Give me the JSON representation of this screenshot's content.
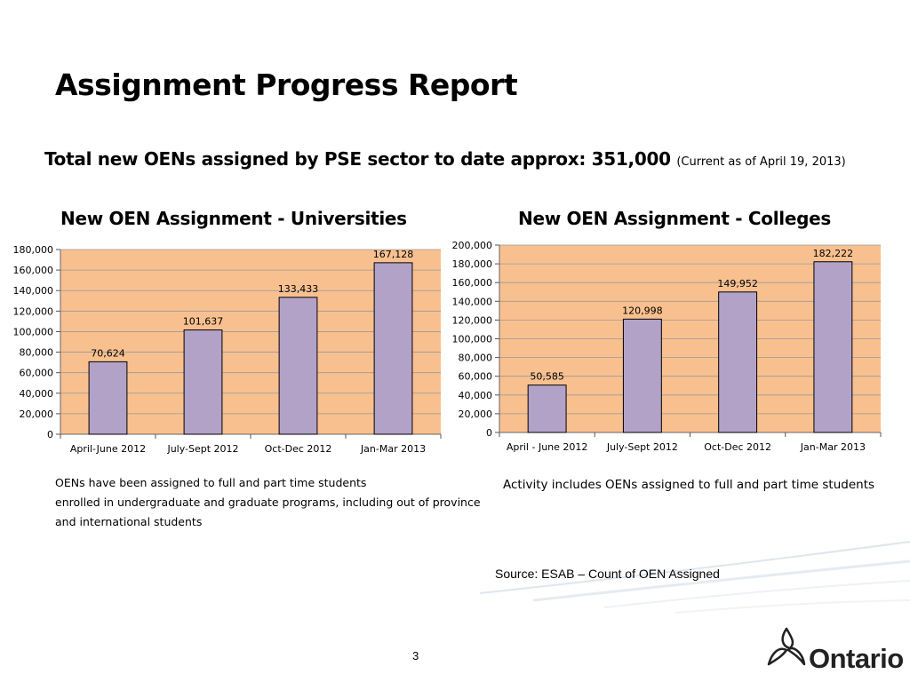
{
  "title": "Assignment Progress Report",
  "subtitle": {
    "main": "Total new OENs assigned by PSE sector to date approx: 351,000",
    "note": "(Current as of April 19, 2013)"
  },
  "captions": {
    "universities": [
      "OENs have been assigned to full and part time students",
      "enrolled in undergraduate and graduate programs, including out of province",
      "and international students"
    ],
    "colleges": "Activity includes OENs assigned to full and part time students"
  },
  "source": "Source: ESAB – Count of OEN Assigned",
  "page_number": "3",
  "logo": {
    "name": "ontario-logo",
    "text": "Ontario"
  },
  "colors": {
    "plot_bg": "#F9C08F",
    "bar": "#B3A2C7",
    "bar_stroke": "#000000",
    "grid": "#999999"
  },
  "chart_data": [
    {
      "type": "bar",
      "title": "New OEN Assignment - Universities",
      "categories": [
        "April-June 2012",
        "July-Sept 2012",
        "Oct-Dec 2012",
        "Jan-Mar 2013"
      ],
      "values": [
        70624,
        101637,
        133433,
        167128
      ],
      "value_labels": [
        "70,624",
        "101,637",
        "133,433",
        "167,128"
      ],
      "ylim": [
        0,
        180000
      ],
      "yticks": [
        "0",
        "20,000",
        "40,000",
        "60,000",
        "80,000",
        "100,000",
        "120,000",
        "140,000",
        "160,000",
        "180,000"
      ],
      "grid": true
    },
    {
      "type": "bar",
      "title": "New OEN Assignment - Colleges",
      "categories": [
        "April - June 2012",
        "July-Sept 2012",
        "Oct-Dec 2012",
        "Jan-Mar 2013"
      ],
      "values": [
        50585,
        120998,
        149952,
        182222
      ],
      "value_labels": [
        "50,585",
        "120,998",
        "149,952",
        "182,222"
      ],
      "ylim": [
        0,
        200000
      ],
      "yticks": [
        "0",
        "20,000",
        "40,000",
        "60,000",
        "80,000",
        "100,000",
        "120,000",
        "140,000",
        "160,000",
        "180,000",
        "200,000"
      ],
      "grid": true
    }
  ]
}
